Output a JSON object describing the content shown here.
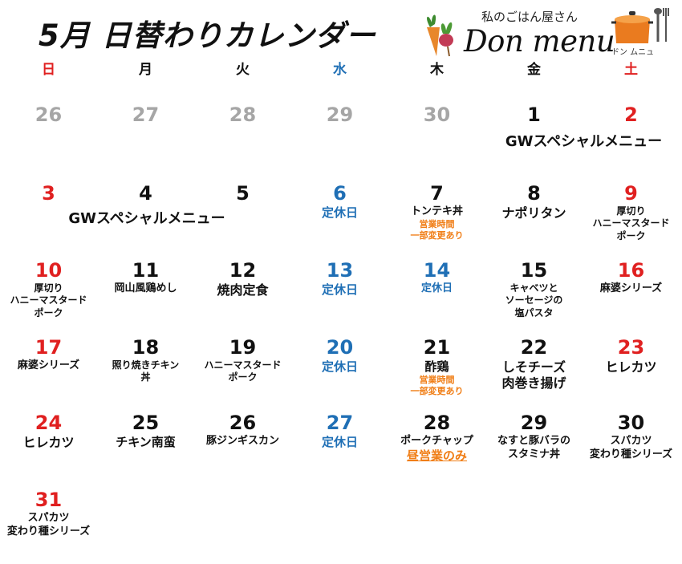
{
  "header": {
    "title": "5月 日替わりカレンダー",
    "shop_subtitle": "私のごはん屋さん",
    "shop_name": "Don menu",
    "shop_kana": "ドン ムニュ"
  },
  "weekdays": [
    "日",
    "月",
    "火",
    "水",
    "木",
    "金",
    "土"
  ],
  "colors": {
    "red": "#e02020",
    "blue": "#1f6fb5",
    "gray": "#a6a6a6",
    "black": "#111111",
    "orange": "#f07e16"
  },
  "weeks": [
    [
      {
        "day": "26",
        "color": "gray",
        "menu": []
      },
      {
        "day": "27",
        "color": "gray",
        "menu": []
      },
      {
        "day": "28",
        "color": "gray",
        "menu": []
      },
      {
        "day": "29",
        "color": "gray",
        "menu": []
      },
      {
        "day": "30",
        "color": "gray",
        "menu": []
      },
      {
        "day": "1",
        "color": "black",
        "menu": []
      },
      {
        "day": "2",
        "color": "red",
        "menu": []
      }
    ],
    [
      {
        "day": "3",
        "color": "red",
        "menu": []
      },
      {
        "day": "4",
        "color": "black",
        "menu": []
      },
      {
        "day": "5",
        "color": "black",
        "menu": []
      },
      {
        "day": "6",
        "color": "blue",
        "menu": [
          {
            "text": "定休日",
            "color": "blue",
            "size": 15
          }
        ]
      },
      {
        "day": "7",
        "color": "black",
        "menu": [
          {
            "text": "トンテキ丼",
            "color": "black",
            "size": 13
          },
          {
            "text": "営業時間",
            "color": "orange",
            "size": 11
          },
          {
            "text": "一部変更あり",
            "color": "orange",
            "size": 11
          }
        ]
      },
      {
        "day": "8",
        "color": "black",
        "menu": [
          {
            "text": "ナポリタン",
            "color": "black",
            "size": 16
          }
        ]
      },
      {
        "day": "9",
        "color": "red",
        "menu": [
          {
            "text": "厚切り",
            "color": "black",
            "size": 12
          },
          {
            "text": "ハニーマスタード",
            "color": "black",
            "size": 12
          },
          {
            "text": "ポーク",
            "color": "black",
            "size": 12
          }
        ]
      }
    ],
    [
      {
        "day": "10",
        "color": "red",
        "menu": [
          {
            "text": "厚切り",
            "color": "black",
            "size": 12
          },
          {
            "text": "ハニーマスタード",
            "color": "black",
            "size": 12
          },
          {
            "text": "ポーク",
            "color": "black",
            "size": 12
          }
        ]
      },
      {
        "day": "11",
        "color": "black",
        "menu": [
          {
            "text": "岡山風鶏めし",
            "color": "black",
            "size": 13
          }
        ]
      },
      {
        "day": "12",
        "color": "black",
        "menu": [
          {
            "text": "焼肉定食",
            "color": "black",
            "size": 16
          }
        ]
      },
      {
        "day": "13",
        "color": "blue",
        "menu": [
          {
            "text": "定休日",
            "color": "blue",
            "size": 15
          }
        ]
      },
      {
        "day": "14",
        "color": "blue",
        "menu": [
          {
            "text": "定休日",
            "color": "blue",
            "size": 13
          }
        ]
      },
      {
        "day": "15",
        "color": "black",
        "menu": [
          {
            "text": "キャベツと",
            "color": "black",
            "size": 12
          },
          {
            "text": "ソーセージの",
            "color": "black",
            "size": 12
          },
          {
            "text": "塩パスタ",
            "color": "black",
            "size": 12
          }
        ]
      },
      {
        "day": "16",
        "color": "red",
        "menu": [
          {
            "text": "麻婆シリーズ",
            "color": "black",
            "size": 13
          }
        ]
      }
    ],
    [
      {
        "day": "17",
        "color": "red",
        "menu": [
          {
            "text": "麻婆シリーズ",
            "color": "black",
            "size": 13
          }
        ]
      },
      {
        "day": "18",
        "color": "black",
        "menu": [
          {
            "text": "照り焼きチキン",
            "color": "black",
            "size": 12
          },
          {
            "text": "丼",
            "color": "black",
            "size": 12
          }
        ]
      },
      {
        "day": "19",
        "color": "black",
        "menu": [
          {
            "text": "ハニーマスタード",
            "color": "black",
            "size": 12
          },
          {
            "text": "ポーク",
            "color": "black",
            "size": 12
          }
        ]
      },
      {
        "day": "20",
        "color": "blue",
        "menu": [
          {
            "text": "定休日",
            "color": "blue",
            "size": 15
          }
        ]
      },
      {
        "day": "21",
        "color": "black",
        "menu": [
          {
            "text": "酢鶏",
            "color": "black",
            "size": 15
          },
          {
            "text": "営業時間",
            "color": "orange",
            "size": 11
          },
          {
            "text": "一部変更あり",
            "color": "orange",
            "size": 11
          }
        ]
      },
      {
        "day": "22",
        "color": "black",
        "menu": [
          {
            "text": "しそチーズ",
            "color": "black",
            "size": 16
          },
          {
            "text": "肉巻き揚げ",
            "color": "black",
            "size": 16
          }
        ]
      },
      {
        "day": "23",
        "color": "red",
        "menu": [
          {
            "text": "ヒレカツ",
            "color": "black",
            "size": 16
          }
        ]
      }
    ],
    [
      {
        "day": "24",
        "color": "red",
        "menu": [
          {
            "text": "ヒレカツ",
            "color": "black",
            "size": 16
          }
        ]
      },
      {
        "day": "25",
        "color": "black",
        "menu": [
          {
            "text": "チキン南蛮",
            "color": "black",
            "size": 15
          }
        ]
      },
      {
        "day": "26",
        "color": "black",
        "menu": [
          {
            "text": "豚ジンギスカン",
            "color": "black",
            "size": 13
          }
        ]
      },
      {
        "day": "27",
        "color": "blue",
        "menu": [
          {
            "text": "定休日",
            "color": "blue",
            "size": 15
          }
        ]
      },
      {
        "day": "28",
        "color": "black",
        "menu": [
          {
            "text": "ポークチャップ",
            "color": "black",
            "size": 13
          },
          {
            "text": "昼営業のみ",
            "color": "orange",
            "size": 15,
            "underline": true
          }
        ]
      },
      {
        "day": "29",
        "color": "black",
        "menu": [
          {
            "text": "なすと豚バラの",
            "color": "black",
            "size": 13
          },
          {
            "text": "スタミナ丼",
            "color": "black",
            "size": 13
          }
        ]
      },
      {
        "day": "30",
        "color": "black",
        "menu": [
          {
            "text": "スパカツ",
            "color": "black",
            "size": 13
          },
          {
            "text": "変わり種シリーズ",
            "color": "black",
            "size": 13
          }
        ]
      }
    ],
    [
      {
        "day": "31",
        "color": "red",
        "menu": [
          {
            "text": "スパカツ",
            "color": "black",
            "size": 13
          },
          {
            "text": "変わり種シリーズ",
            "color": "black",
            "size": 13
          }
        ]
      }
    ]
  ],
  "banners": [
    {
      "text": "GWスペシャルメニュー",
      "week": 0
    },
    {
      "text": "GWスペシャルメニュー",
      "week": 1
    }
  ]
}
